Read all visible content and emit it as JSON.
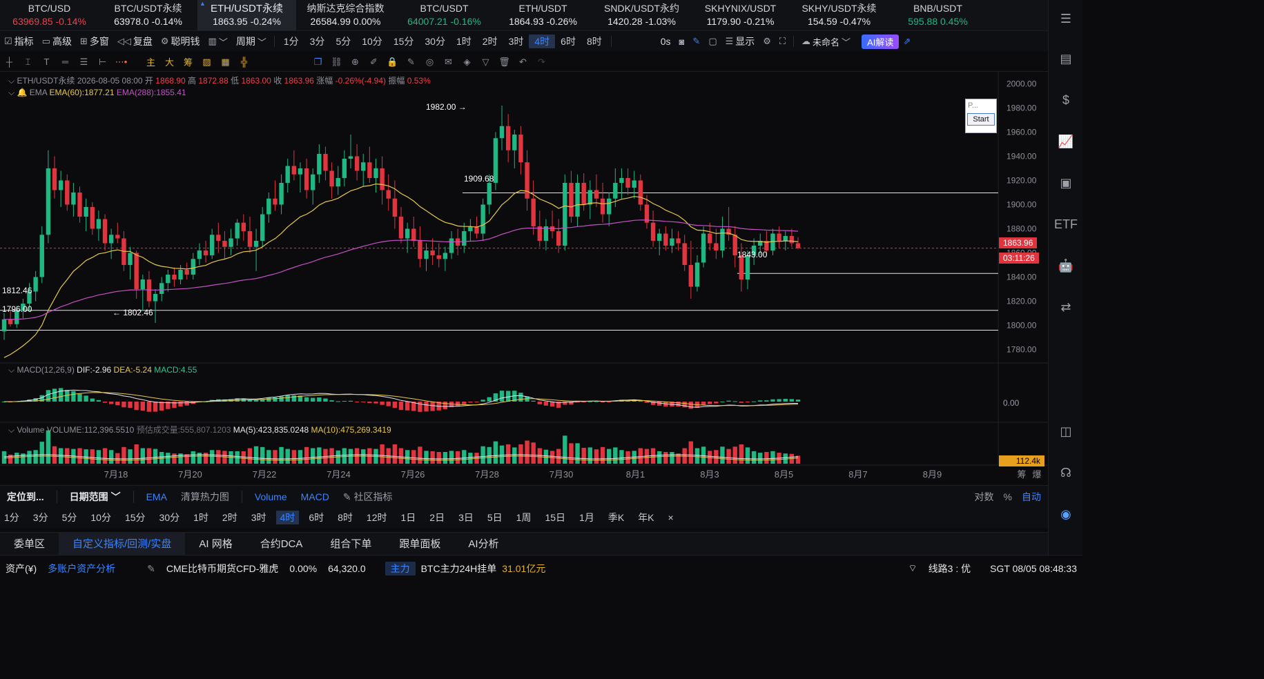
{
  "tickers": [
    {
      "symbol": "BTC/USD",
      "price": "63969.85",
      "change": "-0.14%",
      "color": "red"
    },
    {
      "symbol": "BTC/USDT永续",
      "price": "63978.0",
      "change": "-0.14%",
      "color": "white"
    },
    {
      "symbol": "ETH/USDT永续",
      "price": "1863.95",
      "change": "-0.24%",
      "color": "white",
      "active": true
    },
    {
      "symbol": "纳斯达克综合指数",
      "price": "26584.99",
      "change": "0.00%",
      "color": "white"
    },
    {
      "symbol": "BTC/USDT",
      "price": "64007.21",
      "change": "-0.16%",
      "color": "green"
    },
    {
      "symbol": "ETH/USDT",
      "price": "1864.93",
      "change": "-0.26%",
      "color": "white"
    },
    {
      "symbol": "SNDK/USDT永约",
      "price": "1420.28",
      "change": "-1.03%",
      "color": "white"
    },
    {
      "symbol": "SKHYNIX/USDT",
      "price": "1179.90",
      "change": "-0.21%",
      "color": "white"
    },
    {
      "symbol": "SKHY/USDT永续",
      "price": "154.59",
      "change": "-0.47%",
      "color": "white"
    },
    {
      "symbol": "BNB/USDT",
      "price": "595.88",
      "change": "0.45%",
      "color": "green"
    }
  ],
  "toolbar": {
    "indicator": "指标",
    "advanced": "高级",
    "multi_window": "多窗",
    "replay": "复盘",
    "smart_money": "聪明钱",
    "period": "周期",
    "periods": [
      "1分",
      "3分",
      "5分",
      "10分",
      "15分",
      "30分",
      "1时",
      "2时",
      "3时",
      "4时",
      "6时",
      "8时"
    ],
    "selected_period": "4时",
    "countdown": "0s",
    "display": "显示",
    "unnamed": "未命名",
    "ai_read": "AI解读"
  },
  "ohlc": {
    "symbol": "ETH/USDT永续",
    "datetime": "2026-08-05 08:00",
    "open_label": "开",
    "open": "1868.90",
    "high_label": "高",
    "high": "1872.88",
    "low_label": "低",
    "low": "1863.00",
    "close_label": "收",
    "close": "1863.96",
    "change_label": "涨幅",
    "change": "-0.26%(-4.94)",
    "amp_label": "振幅",
    "amp": "0.53%"
  },
  "ema": {
    "label": "EMA",
    "ema60": "EMA(60):1877.21",
    "ema288": "EMA(288):1855.41"
  },
  "macd": {
    "label": "MACD(12,26,9)",
    "dif": "DIF:-2.96",
    "dea": "DEA:-5.24",
    "macd": "MACD:4.55",
    "axis": "0.00"
  },
  "volume": {
    "label": "Volume",
    "vol": "VOLUME:112,396.5510",
    "est": "预估成交量:555,807.1203",
    "ma5": "MA(5):423,835.0248",
    "ma10": "MA(10):475,269.3419",
    "tag": "112.4k"
  },
  "price_axis": [
    "2000.00",
    "1980.00",
    "1960.00",
    "1940.00",
    "1920.00",
    "1900.00",
    "1880.00",
    "1860.00",
    "1840.00",
    "1820.00",
    "1800.00",
    "1780.00"
  ],
  "current_price": "1863.96",
  "countdown_tag": "03:11:26",
  "annotations": {
    "high": "1982.00",
    "low": "1802.46",
    "l1": "1909.68",
    "l2": "1843.00",
    "left1": "1812.46",
    "left2": "1796.00"
  },
  "date_axis": [
    "7月18",
    "7月20",
    "7月22",
    "7月24",
    "7月26",
    "7月28",
    "7月30",
    "8月1",
    "8月3",
    "8月5",
    "8月7",
    "8月9"
  ],
  "date_axis_right": [
    "筹",
    "爆"
  ],
  "mini_panel": {
    "placeholder": "P...",
    "start": "Start"
  },
  "indicator_row": {
    "locate": "定位到...",
    "date_range": "日期范围",
    "ema": "EMA",
    "liq": "清算热力图",
    "vol": "Volume",
    "macd": "MACD",
    "community": "社区指标",
    "log": "对数",
    "pct": "%",
    "auto": "自动"
  },
  "period_row": [
    "1分",
    "3分",
    "5分",
    "10分",
    "15分",
    "30分",
    "1时",
    "2时",
    "3时",
    "4时",
    "6时",
    "8时",
    "12时",
    "1日",
    "2日",
    "3日",
    "5日",
    "1周",
    "15日",
    "1月",
    "季K",
    "年K"
  ],
  "period_row_selected": "4时",
  "tabs": [
    "委单区",
    "自定义指标/回测/实盘",
    "AI 网格",
    "合约DCA",
    "组合下单",
    "跟单面板",
    "AI分析"
  ],
  "tabs_selected": "自定义指标/回测/实盘",
  "status": {
    "assets": "资产(¥)",
    "multi": "多账户资产分析",
    "cme": "CME比特币期货CFD-雅虎",
    "cme_chg": "0.00%",
    "cme_px": "64,320.0",
    "main": "主力",
    "btc_main": "BTC主力24H挂单",
    "btc_main_val": "31.01亿元",
    "line": "线路3 : 优",
    "time": "SGT 08/05 08:48:33"
  },
  "chart_data": {
    "type": "candlestick",
    "title": "ETH/USDT永续 4H",
    "ylim": [
      1770,
      2010
    ],
    "ohlc": [
      [
        1795,
        1810,
        1788,
        1805
      ],
      [
        1805,
        1812,
        1799,
        1801
      ],
      [
        1801,
        1816,
        1798,
        1812
      ],
      [
        1812,
        1822,
        1806,
        1818
      ],
      [
        1818,
        1835,
        1812,
        1828
      ],
      [
        1828,
        1845,
        1820,
        1840
      ],
      [
        1840,
        1882,
        1835,
        1875
      ],
      [
        1875,
        1945,
        1868,
        1930
      ],
      [
        1930,
        1940,
        1905,
        1912
      ],
      [
        1912,
        1928,
        1898,
        1920
      ],
      [
        1920,
        1925,
        1895,
        1900
      ],
      [
        1900,
        1918,
        1890,
        1910
      ],
      [
        1910,
        1915,
        1885,
        1890
      ],
      [
        1890,
        1905,
        1878,
        1898
      ],
      [
        1898,
        1902,
        1875,
        1880
      ],
      [
        1880,
        1895,
        1870,
        1888
      ],
      [
        1888,
        1892,
        1862,
        1868
      ],
      [
        1868,
        1880,
        1855,
        1875
      ],
      [
        1875,
        1885,
        1868,
        1872
      ],
      [
        1872,
        1878,
        1845,
        1850
      ],
      [
        1850,
        1865,
        1838,
        1860
      ],
      [
        1860,
        1862,
        1822,
        1830
      ],
      [
        1830,
        1842,
        1812,
        1838
      ],
      [
        1838,
        1845,
        1815,
        1820
      ],
      [
        1820,
        1830,
        1802,
        1826
      ],
      [
        1826,
        1840,
        1820,
        1835
      ],
      [
        1835,
        1846,
        1828,
        1842
      ],
      [
        1842,
        1848,
        1832,
        1838
      ],
      [
        1838,
        1850,
        1834,
        1846
      ],
      [
        1846,
        1852,
        1838,
        1842
      ],
      [
        1842,
        1860,
        1838,
        1855
      ],
      [
        1855,
        1868,
        1850,
        1862
      ],
      [
        1862,
        1870,
        1852,
        1858
      ],
      [
        1858,
        1880,
        1855,
        1875
      ],
      [
        1875,
        1885,
        1860,
        1870
      ],
      [
        1870,
        1878,
        1855,
        1865
      ],
      [
        1865,
        1880,
        1858,
        1872
      ],
      [
        1872,
        1888,
        1866,
        1885
      ],
      [
        1885,
        1892,
        1870,
        1878
      ],
      [
        1878,
        1890,
        1860,
        1865
      ],
      [
        1865,
        1880,
        1845,
        1870
      ],
      [
        1870,
        1898,
        1865,
        1892
      ],
      [
        1892,
        1910,
        1885,
        1905
      ],
      [
        1905,
        1920,
        1895,
        1900
      ],
      [
        1900,
        1925,
        1892,
        1918
      ],
      [
        1918,
        1938,
        1910,
        1932
      ],
      [
        1932,
        1945,
        1920,
        1925
      ],
      [
        1925,
        1935,
        1910,
        1930
      ],
      [
        1930,
        1938,
        1905,
        1912
      ],
      [
        1912,
        1930,
        1900,
        1925
      ],
      [
        1925,
        1950,
        1918,
        1942
      ],
      [
        1942,
        1948,
        1920,
        1928
      ],
      [
        1928,
        1935,
        1905,
        1915
      ],
      [
        1915,
        1932,
        1908,
        1922
      ],
      [
        1922,
        1945,
        1915,
        1938
      ],
      [
        1938,
        1958,
        1930,
        1940
      ],
      [
        1940,
        1950,
        1920,
        1928
      ],
      [
        1928,
        1942,
        1915,
        1935
      ],
      [
        1935,
        1948,
        1918,
        1922
      ],
      [
        1922,
        1938,
        1910,
        1930
      ],
      [
        1930,
        1940,
        1900,
        1912
      ],
      [
        1912,
        1925,
        1895,
        1905
      ],
      [
        1905,
        1920,
        1880,
        1890
      ],
      [
        1890,
        1898,
        1868,
        1872
      ],
      [
        1872,
        1885,
        1860,
        1880
      ],
      [
        1880,
        1890,
        1865,
        1870
      ],
      [
        1870,
        1882,
        1848,
        1855
      ],
      [
        1855,
        1868,
        1845,
        1862
      ],
      [
        1862,
        1872,
        1850,
        1858
      ],
      [
        1858,
        1868,
        1848,
        1855
      ],
      [
        1855,
        1865,
        1845,
        1860
      ],
      [
        1860,
        1878,
        1855,
        1872
      ],
      [
        1872,
        1880,
        1858,
        1866
      ],
      [
        1866,
        1885,
        1860,
        1878
      ],
      [
        1878,
        1888,
        1870,
        1882
      ],
      [
        1882,
        1890,
        1872,
        1876
      ],
      [
        1876,
        1905,
        1870,
        1900
      ],
      [
        1900,
        1925,
        1892,
        1918
      ],
      [
        1918,
        1960,
        1912,
        1955
      ],
      [
        1955,
        1982,
        1945,
        1965
      ],
      [
        1965,
        1975,
        1935,
        1945
      ],
      [
        1945,
        1962,
        1930,
        1958
      ],
      [
        1958,
        1965,
        1925,
        1935
      ],
      [
        1935,
        1945,
        1895,
        1905
      ],
      [
        1905,
        1920,
        1875,
        1882
      ],
      [
        1882,
        1895,
        1865,
        1870
      ],
      [
        1870,
        1888,
        1862,
        1882
      ],
      [
        1882,
        1895,
        1872,
        1878
      ],
      [
        1878,
        1888,
        1860,
        1866
      ],
      [
        1866,
        1925,
        1862,
        1918
      ],
      [
        1918,
        1928,
        1885,
        1890
      ],
      [
        1890,
        1925,
        1882,
        1918
      ],
      [
        1918,
        1926,
        1895,
        1900
      ],
      [
        1900,
        1920,
        1888,
        1912
      ],
      [
        1912,
        1925,
        1898,
        1905
      ],
      [
        1905,
        1918,
        1885,
        1892
      ],
      [
        1892,
        1910,
        1882,
        1905
      ],
      [
        1905,
        1930,
        1898,
        1918
      ],
      [
        1918,
        1930,
        1905,
        1922
      ],
      [
        1922,
        1930,
        1908,
        1914
      ],
      [
        1914,
        1928,
        1905,
        1920
      ],
      [
        1920,
        1925,
        1895,
        1900
      ],
      [
        1900,
        1908,
        1880,
        1885
      ],
      [
        1885,
        1895,
        1865,
        1870
      ],
      [
        1870,
        1880,
        1858,
        1876
      ],
      [
        1876,
        1882,
        1862,
        1866
      ],
      [
        1866,
        1880,
        1860,
        1872
      ],
      [
        1872,
        1878,
        1862,
        1868
      ],
      [
        1868,
        1875,
        1845,
        1850
      ],
      [
        1850,
        1870,
        1822,
        1832
      ],
      [
        1832,
        1858,
        1828,
        1852
      ],
      [
        1852,
        1882,
        1848,
        1876
      ],
      [
        1876,
        1885,
        1862,
        1868
      ],
      [
        1868,
        1880,
        1855,
        1862
      ],
      [
        1862,
        1890,
        1856,
        1880
      ],
      [
        1880,
        1898,
        1870,
        1875
      ],
      [
        1875,
        1882,
        1848,
        1858
      ],
      [
        1858,
        1868,
        1828,
        1838
      ],
      [
        1838,
        1862,
        1830,
        1858
      ],
      [
        1858,
        1872,
        1850,
        1866
      ],
      [
        1866,
        1876,
        1858,
        1870
      ],
      [
        1870,
        1878,
        1858,
        1862
      ],
      [
        1862,
        1880,
        1858,
        1876
      ],
      [
        1876,
        1882,
        1864,
        1870
      ],
      [
        1870,
        1878,
        1862,
        1874
      ],
      [
        1874,
        1880,
        1865,
        1868
      ],
      [
        1868,
        1873,
        1863,
        1864
      ]
    ]
  }
}
